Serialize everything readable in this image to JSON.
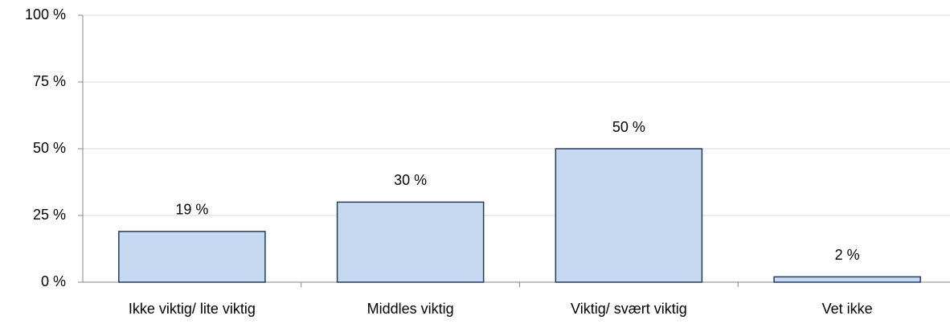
{
  "chart_data": {
    "type": "bar",
    "categories": [
      "Ikke viktig/ lite viktig",
      "Middles viktig",
      "Viktig/ svært viktig",
      "Vet ikke"
    ],
    "values": [
      19,
      30,
      50,
      2
    ],
    "value_labels": [
      "19 %",
      "30 %",
      "50 %",
      "2 %"
    ],
    "color": "#c6d9f1",
    "ylim": [
      0,
      100
    ],
    "yticks": [
      {
        "value": 0,
        "label": "0 %"
      },
      {
        "value": 25,
        "label": "25 %"
      },
      {
        "value": 50,
        "label": "50 %"
      },
      {
        "value": 75,
        "label": "75 %"
      },
      {
        "value": 100,
        "label": "100 %"
      }
    ],
    "grid": true
  }
}
